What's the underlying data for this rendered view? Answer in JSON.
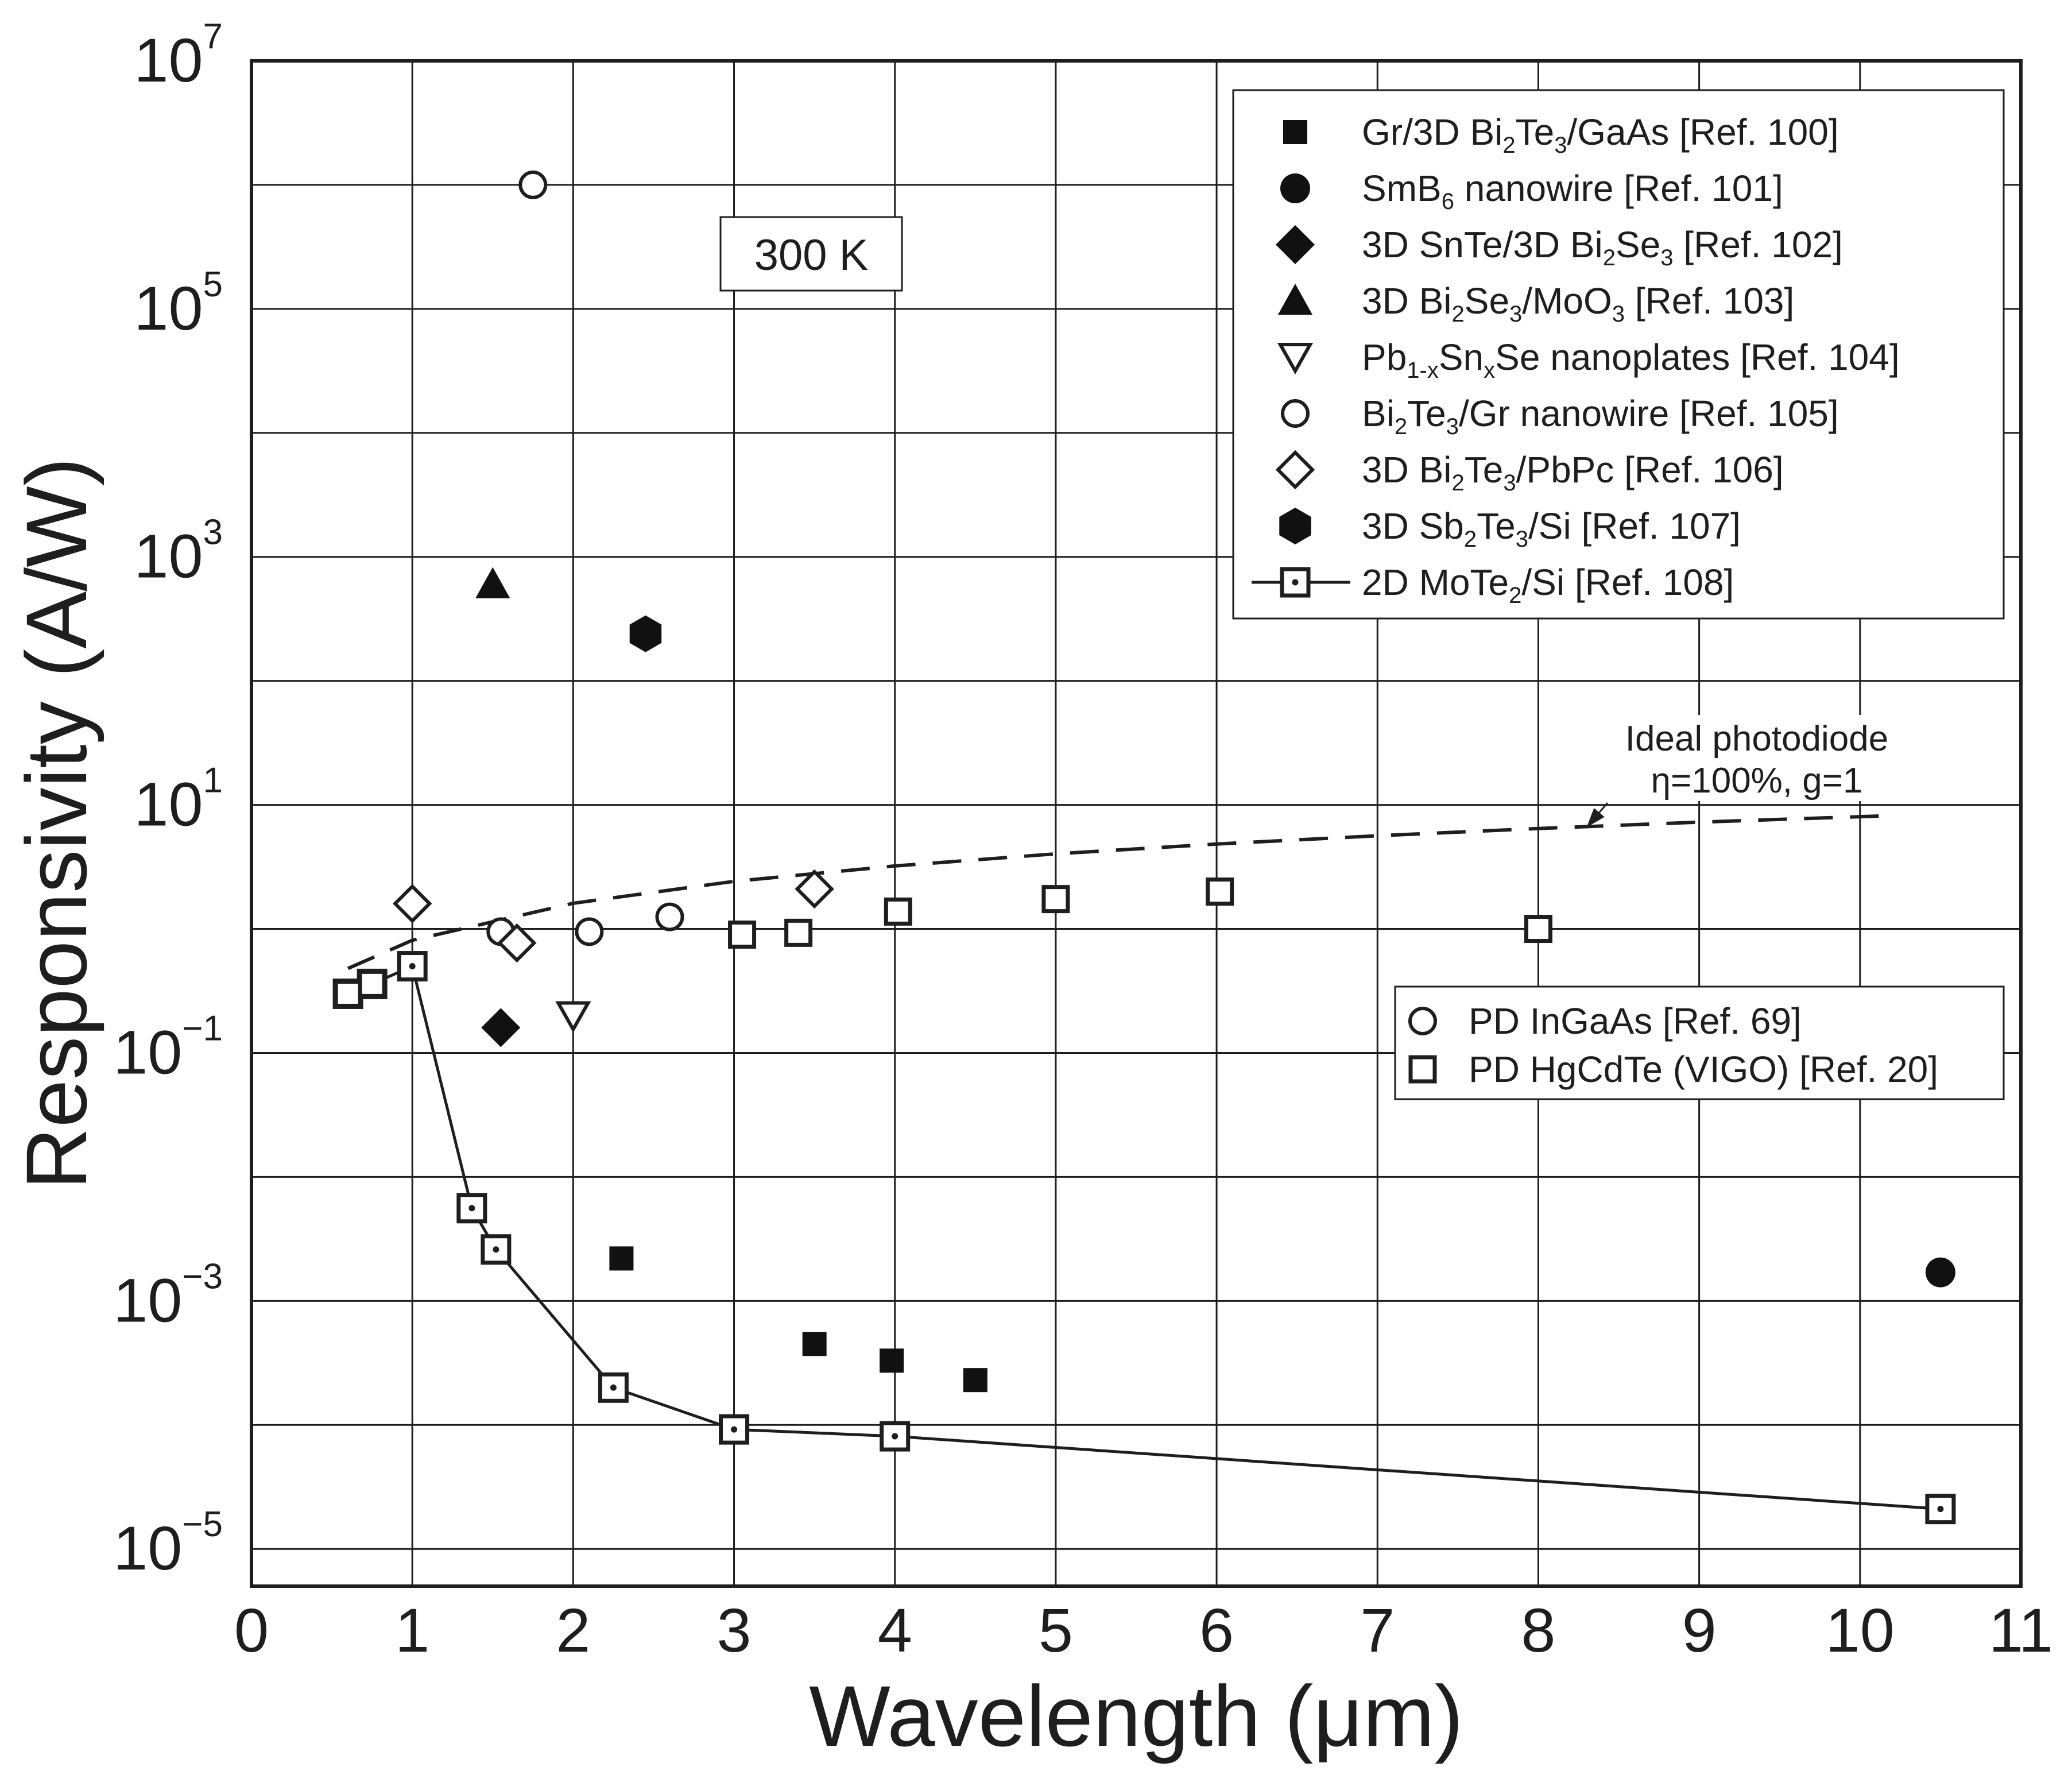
{
  "chart_data": {
    "type": "scatter",
    "title": "",
    "xlabel": "Wavelength (μm)",
    "ylabel": "Responsivity (A/W)",
    "xlim": [
      0,
      11
    ],
    "ylim_log10": [
      -5.3,
      7
    ],
    "x_ticks": [
      "0",
      "1",
      "2",
      "3",
      "4",
      "5",
      "6",
      "7",
      "8",
      "9",
      "10",
      "11"
    ],
    "y_ticks": [
      {
        "value": 1e-05,
        "base": "10",
        "exp": "−5"
      },
      {
        "value": 0.001,
        "base": "10",
        "exp": "−3"
      },
      {
        "value": 0.1,
        "base": "10",
        "exp": "−1"
      },
      {
        "value": 10.0,
        "base": "10",
        "exp": "1"
      },
      {
        "value": 1000.0,
        "base": "10",
        "exp": "3"
      },
      {
        "value": 100000.0,
        "base": "10",
        "exp": "5"
      },
      {
        "value": 10000000.0,
        "base": "10",
        "exp": "7"
      }
    ],
    "grid": true,
    "temperature_label": "300 K",
    "annotation": {
      "line1": "Ideal photodiode",
      "line2": "η=100%, g=1",
      "arrow_to": {
        "x": 8.3,
        "y": 6.6
      }
    },
    "series": [
      {
        "name": "Gr/3D Bi₂Te₃/GaAs [Ref. 100]",
        "legend_parts": [
          [
            "Gr/3D Bi",
            ""
          ],
          [
            "2",
            "sub"
          ],
          [
            "Te",
            ""
          ],
          [
            "3",
            "sub"
          ],
          [
            "/GaAs [Ref. 100]",
            ""
          ]
        ],
        "marker": "square-filled",
        "points": [
          [
            2.3,
            0.0022
          ],
          [
            3.5,
            0.00045
          ],
          [
            3.98,
            0.00033
          ],
          [
            4.5,
            0.00023
          ]
        ]
      },
      {
        "name": "SmB₆ nanowire [Ref. 101]",
        "legend_parts": [
          [
            "SmB",
            ""
          ],
          [
            "6",
            "sub"
          ],
          [
            " nanowire [Ref. 101]",
            ""
          ]
        ],
        "marker": "circle-filled",
        "points": [
          [
            10.5,
            0.0017
          ]
        ]
      },
      {
        "name": "3D SnTe/3D Bi₂Se₃ [Ref. 102]",
        "legend_parts": [
          [
            "3D SnTe/3D Bi",
            ""
          ],
          [
            "2",
            "sub"
          ],
          [
            "Se",
            ""
          ],
          [
            "3",
            "sub"
          ],
          [
            " [Ref. 102]",
            ""
          ]
        ],
        "marker": "diamond-filled",
        "points": [
          [
            1.55,
            0.16
          ]
        ]
      },
      {
        "name": "3D Bi₂Se₃/MoO₃ [Ref. 103]",
        "legend_parts": [
          [
            "3D Bi",
            ""
          ],
          [
            "2",
            "sub"
          ],
          [
            "Se",
            ""
          ],
          [
            "3",
            "sub"
          ],
          [
            "/MoO",
            ""
          ],
          [
            "3",
            "sub"
          ],
          [
            " [Ref. 103]",
            ""
          ]
        ],
        "marker": "triangle-up-filled",
        "points": [
          [
            1.5,
            600
          ]
        ]
      },
      {
        "name": "Pb₁₋ₓSnₓSe nanoplates [Ref. 104]",
        "legend_parts": [
          [
            "Pb",
            ""
          ],
          [
            "1-x",
            "sub"
          ],
          [
            "Sn",
            ""
          ],
          [
            "x",
            "sub"
          ],
          [
            "Se nanoplates [Ref. 104]",
            ""
          ]
        ],
        "marker": "triangle-down-open",
        "points": [
          [
            2.0,
            0.2
          ]
        ]
      },
      {
        "name": "Bi₂Te₃/Gr nanowire [Ref. 105]",
        "legend_parts": [
          [
            "Bi",
            ""
          ],
          [
            "2",
            "sub"
          ],
          [
            "Te",
            ""
          ],
          [
            "3",
            "sub"
          ],
          [
            "/Gr nanowire [Ref. 105]",
            ""
          ]
        ],
        "marker": "circle-open",
        "points": [
          [
            1.75,
            1000000.0
          ]
        ]
      },
      {
        "name": "3D Bi₂Te₃/PbPc [Ref. 106]",
        "legend_parts": [
          [
            "3D Bi",
            ""
          ],
          [
            "2",
            "sub"
          ],
          [
            "Te",
            ""
          ],
          [
            "3",
            "sub"
          ],
          [
            "/PbPc [Ref. 106]",
            ""
          ]
        ],
        "marker": "diamond-open",
        "points": [
          [
            1.0,
            1.6
          ],
          [
            1.65,
            0.77
          ],
          [
            3.5,
            2.1
          ]
        ]
      },
      {
        "name": "3D Sb₂Te₃/Si [Ref. 107]",
        "legend_parts": [
          [
            "3D Sb",
            ""
          ],
          [
            "2",
            "sub"
          ],
          [
            "Te",
            ""
          ],
          [
            "3",
            "sub"
          ],
          [
            "/Si [Ref. 107]",
            ""
          ]
        ],
        "marker": "hexagon-filled",
        "points": [
          [
            2.45,
            240
          ]
        ]
      },
      {
        "name": "2D MoTe₂/Si [Ref. 108]",
        "legend_parts": [
          [
            "2D MoTe",
            ""
          ],
          [
            "2",
            "sub"
          ],
          [
            "/Si [Ref. 108]",
            ""
          ]
        ],
        "marker": "square-dot-line",
        "points": [
          [
            0.6,
            0.3
          ],
          [
            0.75,
            0.36
          ],
          [
            1.0,
            0.5
          ],
          [
            1.37,
            0.0056
          ],
          [
            1.52,
            0.0026
          ],
          [
            2.25,
            0.0002
          ],
          [
            3.0,
            9.2e-05
          ],
          [
            4.0,
            8.1e-05
          ],
          [
            10.5,
            2.1e-05
          ]
        ]
      },
      {
        "name": "PD InGaAs [Ref. 69]",
        "legend_parts": [
          [
            "PD InGaAs [Ref. 69]",
            ""
          ]
        ],
        "marker": "circle-open",
        "points": [
          [
            1.55,
            0.95
          ],
          [
            2.1,
            0.95
          ],
          [
            2.6,
            1.25
          ]
        ]
      },
      {
        "name": "PD HgCdTe (VIGO) [Ref. 20]",
        "legend_parts": [
          [
            "PD HgCdTe (VIGO) [Ref. 20]",
            ""
          ]
        ],
        "marker": "square-open",
        "points": [
          [
            0.6,
            0.3
          ],
          [
            0.75,
            0.36
          ],
          [
            3.05,
            0.9
          ],
          [
            3.4,
            0.93
          ],
          [
            4.02,
            1.38
          ],
          [
            5.0,
            1.74
          ],
          [
            6.02,
            2.0
          ],
          [
            8.0,
            1.0
          ]
        ]
      },
      {
        "name": "Ideal photodiode",
        "legend_parts": [],
        "marker": "dashed-line",
        "points": [
          [
            0.6,
            0.48
          ],
          [
            1.0,
            0.81
          ],
          [
            2.0,
            1.61
          ],
          [
            3.0,
            2.42
          ],
          [
            4.0,
            3.22
          ],
          [
            5.0,
            4.03
          ],
          [
            6.0,
            4.84
          ],
          [
            7.0,
            5.64
          ],
          [
            8.0,
            6.45
          ],
          [
            9.0,
            7.26
          ],
          [
            10.2,
            8.2
          ]
        ]
      }
    ],
    "legend_main_order": [
      0,
      1,
      2,
      3,
      4,
      5,
      6,
      7,
      8
    ],
    "legend_secondary_order": [
      9,
      10
    ]
  }
}
